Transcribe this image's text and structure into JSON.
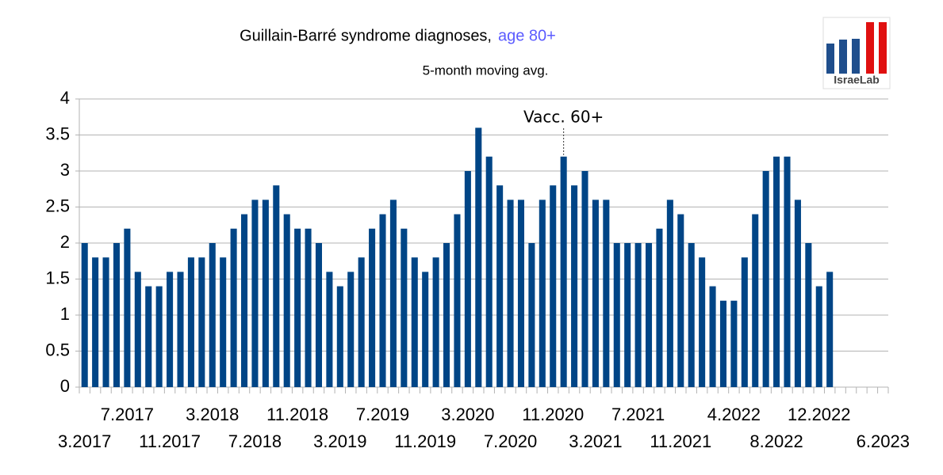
{
  "chart_data": {
    "type": "bar",
    "title": "Guillain-Barré syndrome diagnoses,",
    "title_highlight": "age 80+",
    "subtitle": "5-month moving avg.",
    "annotation": {
      "text": "Vacc. 60+",
      "index": 45
    },
    "logo": "IsraeLab",
    "color": "#004586",
    "ylim": [
      0,
      4
    ],
    "yticks": [
      0,
      0.5,
      1,
      1.5,
      2,
      2.5,
      3,
      3.5,
      4
    ],
    "grid": true,
    "categories": [
      "3.2017",
      null,
      null,
      null,
      "7.2017",
      null,
      null,
      null,
      "11.2017",
      null,
      null,
      null,
      "3.2018",
      null,
      null,
      null,
      "7.2018",
      null,
      null,
      null,
      "11.2018",
      null,
      null,
      null,
      "3.2019",
      null,
      null,
      null,
      "7.2019",
      null,
      null,
      null,
      "11.2019",
      null,
      null,
      null,
      "3.2020",
      null,
      null,
      null,
      "7.2020",
      null,
      null,
      null,
      "11.2020",
      null,
      null,
      null,
      "3.2021",
      null,
      null,
      null,
      "7.2021",
      null,
      null,
      null,
      "11.2021",
      null,
      null,
      null,
      null,
      "4.2022",
      null,
      null,
      null,
      "8.2022",
      null,
      null,
      null,
      "12.2022",
      null,
      null,
      null,
      null,
      null,
      "6.2023"
    ],
    "values": [
      2.0,
      1.8,
      1.8,
      2.0,
      2.2,
      1.6,
      1.4,
      1.4,
      1.6,
      1.6,
      1.8,
      1.8,
      2.0,
      1.8,
      2.2,
      2.4,
      2.6,
      2.6,
      2.8,
      2.4,
      2.2,
      2.2,
      2.0,
      1.6,
      1.4,
      1.6,
      1.8,
      2.2,
      2.4,
      2.6,
      2.2,
      1.8,
      1.6,
      1.8,
      2.0,
      2.4,
      3.0,
      3.6,
      3.2,
      2.8,
      2.6,
      2.6,
      2.0,
      2.6,
      2.8,
      3.2,
      2.8,
      3.0,
      2.6,
      2.6,
      2.0,
      2.0,
      2.0,
      2.0,
      2.2,
      2.6,
      2.4,
      2.0,
      1.8,
      1.4,
      1.2,
      1.2,
      1.8,
      2.4,
      3.0,
      3.2,
      3.2,
      2.6,
      2.0,
      1.4,
      1.6,
      null,
      null,
      null,
      null,
      null
    ]
  }
}
